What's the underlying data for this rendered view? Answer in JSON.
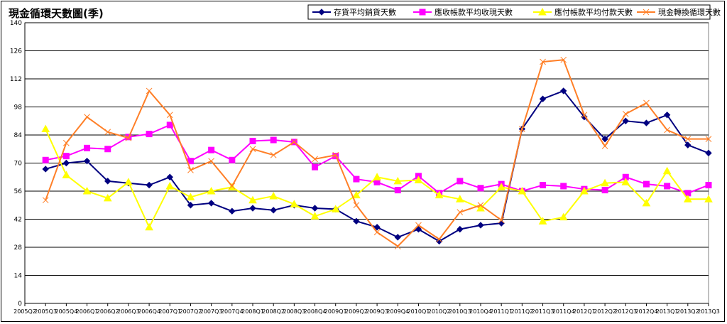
{
  "chart_data": {
    "type": "line",
    "title": "現金循環天數圖(季)",
    "xlabel": "",
    "ylabel": "",
    "ylim": [
      0,
      140
    ],
    "yticks": [
      0,
      14,
      28,
      42,
      56,
      70,
      84,
      98,
      112,
      126,
      140
    ],
    "grid": true,
    "legend_position": "top-right",
    "x": [
      "2005Q2",
      "2005Q3",
      "2005Q4",
      "2006Q1",
      "2006Q2",
      "2006Q3",
      "2006Q4",
      "2007Q1",
      "2007Q2",
      "2007Q3",
      "2007Q4",
      "2008Q1",
      "2008Q2",
      "2008Q3",
      "2008Q4",
      "2009Q1",
      "2009Q2",
      "2009Q3",
      "2009Q4",
      "2010Q1",
      "2010Q2",
      "2010Q3",
      "2010Q4",
      "2011Q1",
      "2011Q2",
      "2011Q3",
      "2011Q4",
      "2012Q1",
      "2012Q2",
      "2012Q3",
      "2012Q4",
      "2013Q1",
      "2013Q2",
      "2013Q3"
    ],
    "x_tick_labels": [
      "2005Q2",
      "2005Q3",
      "2005Q4",
      "2006Q1",
      "2006Q2",
      "2006Q3",
      "2006Q4",
      "2007Q1",
      "2007Q2",
      "2007Q3",
      "2007Q4",
      "2008Q1",
      "2008Q2",
      "2008Q3",
      "2008Q4",
      "2009Q1",
      "2009Q2",
      "2009Q3",
      "2009Q4",
      "2010Q1",
      "2010Q2",
      "2010Q3",
      "2010Q4",
      "2011Q1",
      "2011Q2",
      "2011Q3",
      "2011Q4",
      "2012Q1",
      "2012Q2",
      "2012Q3",
      "2012Q4",
      "2013Q1",
      "2013Q2",
      "2013Q3"
    ],
    "series": [
      {
        "name": "存貨平均銷貨天數",
        "color": "#000080",
        "marker": "diamond",
        "values": [
          null,
          67,
          70,
          71,
          61,
          60,
          59,
          63,
          49,
          50,
          46,
          47.5,
          46.5,
          49,
          47.5,
          47,
          41,
          38,
          33,
          37,
          31,
          37,
          39,
          40,
          87,
          102,
          106,
          93,
          82,
          91,
          90,
          94,
          79,
          75
        ]
      },
      {
        "name": "應收帳款平均收現天數",
        "color": "#ff00ff",
        "marker": "square",
        "values": [
          null,
          71.5,
          73.5,
          77.5,
          77,
          83,
          84.5,
          89,
          71,
          76.5,
          71.5,
          81,
          81.5,
          80.5,
          68,
          73.5,
          62,
          60.5,
          56.5,
          63.5,
          55,
          61,
          57.5,
          59.5,
          56,
          59,
          58.5,
          57,
          56.5,
          63,
          59.5,
          58.5,
          55,
          59
        ]
      },
      {
        "name": "應付帳款平均付款天數",
        "color": "#ffff00",
        "marker": "triangle",
        "values": [
          null,
          87,
          64,
          56,
          52.5,
          60.5,
          38,
          58.5,
          53,
          56,
          58,
          51.5,
          53.5,
          49.5,
          43.5,
          47,
          54,
          63,
          61,
          61.5,
          54,
          52,
          47.5,
          58,
          56,
          41,
          43,
          56,
          60,
          60.5,
          50,
          66,
          52,
          52
        ]
      },
      {
        "name": "現金轉換循環天數",
        "color": "#ff7f27",
        "marker": "x",
        "values": [
          null,
          51.5,
          80,
          93,
          85.5,
          82.5,
          106,
          94,
          66.5,
          71,
          58.5,
          77,
          74,
          80.5,
          72,
          74,
          49,
          35.5,
          28.5,
          39,
          32,
          45.5,
          49,
          41.5,
          87,
          120.5,
          121.5,
          94,
          78.5,
          94.5,
          100,
          86.5,
          82,
          82
        ]
      }
    ]
  }
}
